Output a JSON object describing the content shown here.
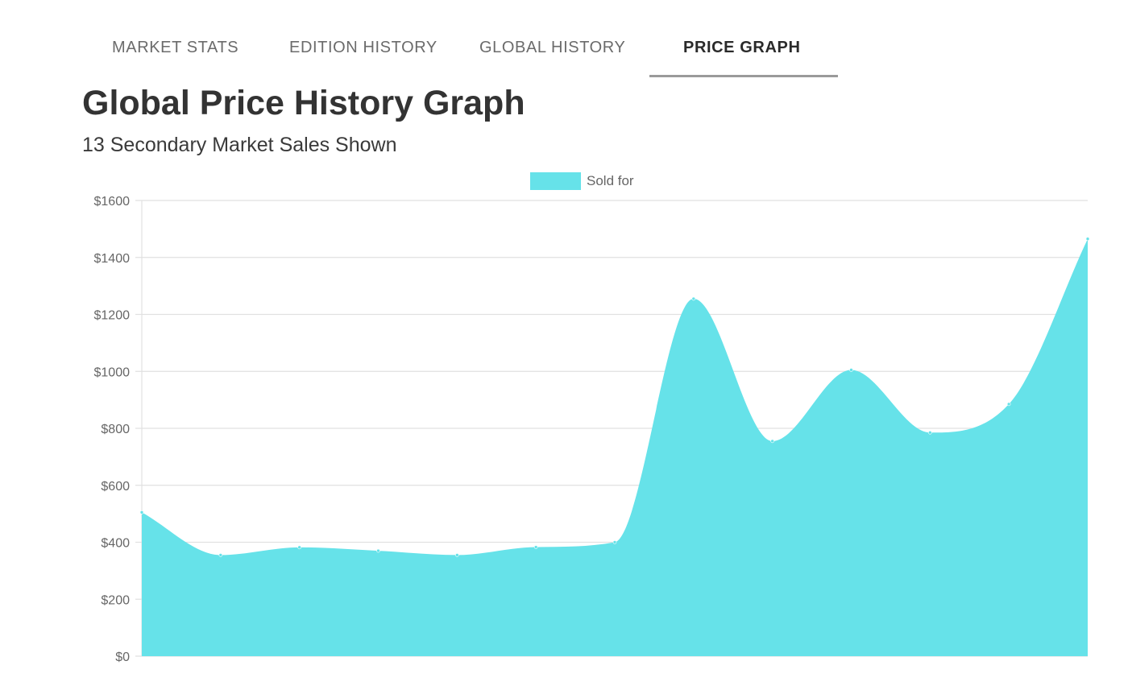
{
  "tabs": [
    {
      "label": "MARKET STATS",
      "active": false
    },
    {
      "label": "EDITION HISTORY",
      "active": false
    },
    {
      "label": "GLOBAL HISTORY",
      "active": false
    },
    {
      "label": "PRICE GRAPH",
      "active": true
    }
  ],
  "page": {
    "title": "Global Price History Graph",
    "subtitle": "13 Secondary Market Sales Shown"
  },
  "colors": {
    "fill": "#66e2e9",
    "grid": "#e1e1e1",
    "active_tab_underline": "#9a9a9a"
  },
  "chart_data": {
    "type": "area",
    "title": "",
    "xlabel": "",
    "ylabel": "",
    "legend_position": "top-center",
    "grid": true,
    "ylim": [
      0,
      1600
    ],
    "y_ticks": [
      "$0",
      "$200",
      "$400",
      "$600",
      "$800",
      "$1000",
      "$1200",
      "$1400",
      "$1600"
    ],
    "series": [
      {
        "name": "Sold for",
        "values": [
          505,
          355,
          382,
          370,
          355,
          383,
          400,
          1255,
          755,
          1005,
          785,
          885,
          1465
        ]
      }
    ]
  }
}
